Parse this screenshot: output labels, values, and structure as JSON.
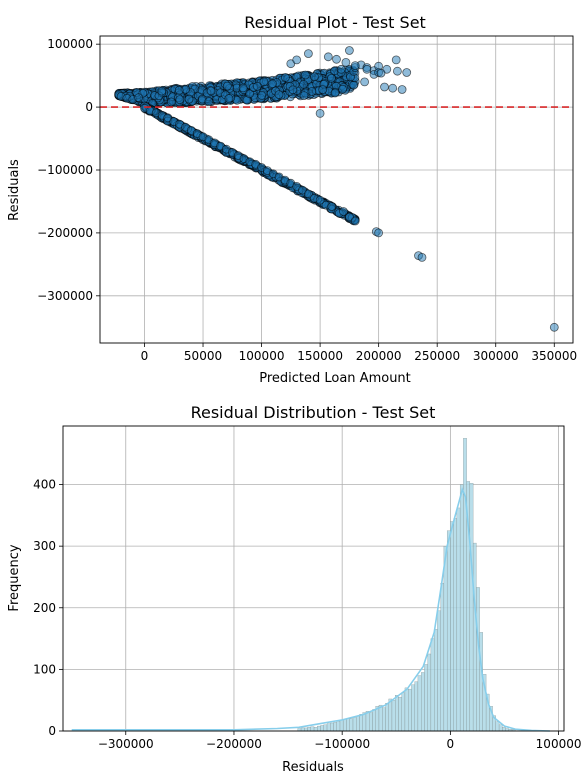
{
  "chart_data": [
    {
      "type": "scatter",
      "title": "Residual Plot - Test Set",
      "xlabel": "Predicted Loan Amount",
      "ylabel": "Residuals",
      "xlim": [
        -38000,
        366000
      ],
      "ylim": [
        -375000,
        113000
      ],
      "xticks": [
        0,
        50000,
        100000,
        150000,
        200000,
        250000,
        300000,
        350000
      ],
      "xtick_labels": [
        "0",
        "50000",
        "100000",
        "150000",
        "200000",
        "250000",
        "300000",
        "350000"
      ],
      "yticks": [
        100000,
        0,
        -100000,
        -200000,
        -300000
      ],
      "ytick_labels": [
        "100000",
        "0",
        "−100000",
        "−200000",
        "−300000"
      ],
      "grid": true,
      "reference_line": {
        "y": 0,
        "color": "#d62728",
        "style": "dashed"
      },
      "point_color": "#1f77b4",
      "point_edge_color": "#000000",
      "point_alpha": 0.5,
      "point_clouds": [
        {
          "region": "upper band",
          "x_range": [
            -22000,
            180000
          ],
          "residual_min_at_x": [
            [
              -22000,
              18000
            ],
            [
              0,
              5000
            ],
            [
              50000,
              8000
            ],
            [
              100000,
              12000
            ],
            [
              150000,
              20000
            ],
            [
              180000,
              25000
            ]
          ],
          "residual_max_at_x": [
            [
              -22000,
              22000
            ],
            [
              0,
              24000
            ],
            [
              50000,
              35000
            ],
            [
              100000,
              42000
            ],
            [
              150000,
              55000
            ],
            [
              180000,
              62000
            ]
          ]
        },
        {
          "region": "diagonal band",
          "relation": "residual ≈ −predicted",
          "x_range": [
            0,
            180000
          ]
        }
      ],
      "points": [
        [
          -22000,
          20000
        ],
        [
          -20000,
          17000
        ],
        [
          -15000,
          14000
        ],
        [
          -10000,
          12000
        ],
        [
          -5000,
          15000
        ],
        [
          0,
          -2000
        ],
        [
          5000,
          -6000
        ],
        [
          10000,
          -9000
        ],
        [
          15000,
          -13000
        ],
        [
          20000,
          -17000
        ],
        [
          25000,
          -23000
        ],
        [
          30000,
          -27000
        ],
        [
          35000,
          -32000
        ],
        [
          40000,
          -37000
        ],
        [
          45000,
          -42000
        ],
        [
          50000,
          -47000
        ],
        [
          55000,
          -52000
        ],
        [
          60000,
          -57000
        ],
        [
          65000,
          -62000
        ],
        [
          70000,
          -67000
        ],
        [
          75000,
          -72000
        ],
        [
          80000,
          -77000
        ],
        [
          85000,
          -82000
        ],
        [
          90000,
          -87000
        ],
        [
          95000,
          -91000
        ],
        [
          100000,
          -96000
        ],
        [
          105000,
          -101000
        ],
        [
          110000,
          -106000
        ],
        [
          115000,
          -111000
        ],
        [
          120000,
          -116000
        ],
        [
          125000,
          -121000
        ],
        [
          130000,
          -126000
        ],
        [
          135000,
          -132000
        ],
        [
          140000,
          -138000
        ],
        [
          145000,
          -145000
        ],
        [
          150000,
          -148000
        ],
        [
          155000,
          -156000
        ],
        [
          160000,
          -158000
        ],
        [
          170000,
          -166000
        ],
        [
          175000,
          -175000
        ],
        [
          180000,
          -181000
        ],
        [
          198000,
          -198000
        ],
        [
          200000,
          -200000
        ],
        [
          234000,
          -236000
        ],
        [
          237000,
          -239000
        ],
        [
          350000,
          -350000
        ],
        [
          125000,
          69000
        ],
        [
          130000,
          75000
        ],
        [
          140000,
          85000
        ],
        [
          157000,
          80000
        ],
        [
          164000,
          76000
        ],
        [
          172000,
          71000
        ],
        [
          168000,
          60000
        ],
        [
          175000,
          90000
        ],
        [
          180000,
          63000
        ],
        [
          185000,
          67000
        ],
        [
          190000,
          63000
        ],
        [
          196000,
          58000
        ],
        [
          200000,
          65000
        ],
        [
          207000,
          60000
        ],
        [
          212000,
          30000
        ],
        [
          220000,
          28000
        ],
        [
          205000,
          32000
        ],
        [
          188000,
          40000
        ],
        [
          196000,
          52000
        ],
        [
          200000,
          55000
        ],
        [
          215000,
          75000
        ],
        [
          216000,
          57000
        ],
        [
          224000,
          55000
        ],
        [
          190000,
          60000
        ],
        [
          150000,
          -10000
        ],
        [
          180000,
          66000
        ],
        [
          202000,
          54000
        ]
      ]
    },
    {
      "type": "bar",
      "subtype": "histogram_with_kde",
      "title": "Residual Distribution - Test Set",
      "xlabel": "Residuals",
      "ylabel": "Frequency",
      "xlim": [
        -358000,
        105000
      ],
      "ylim": [
        0,
        495
      ],
      "xticks": [
        -300000,
        -200000,
        -100000,
        0,
        100000
      ],
      "xtick_labels": [
        "−300000",
        "−200000",
        "−100000",
        "0",
        "100000"
      ],
      "yticks": [
        0,
        100,
        200,
        300,
        400
      ],
      "ytick_labels": [
        "0",
        "100",
        "200",
        "300",
        "400"
      ],
      "grid": true,
      "bar_color": "#add8e6",
      "bar_edge_color": "#7f8c8d",
      "kde_color": "#87ceeb",
      "bin_width": 3000,
      "bin_centers": [
        -139500,
        -136500,
        -133500,
        -130500,
        -127500,
        -124500,
        -121500,
        -118500,
        -115500,
        -112500,
        -109500,
        -106500,
        -103500,
        -100500,
        -97500,
        -94500,
        -91500,
        -88500,
        -85500,
        -82500,
        -79500,
        -76500,
        -73500,
        -70500,
        -67500,
        -64500,
        -61500,
        -58500,
        -55500,
        -52500,
        -49500,
        -46500,
        -43500,
        -40500,
        -37500,
        -34500,
        -31500,
        -28500,
        -25500,
        -22500,
        -19500,
        -16500,
        -13500,
        -10500,
        -7500,
        -4500,
        -1500,
        1500,
        4500,
        7500,
        10500,
        13500,
        16500,
        19500,
        22500,
        25500,
        28500,
        31500,
        34500,
        37500,
        40500,
        43500,
        46500,
        49500,
        52500,
        55500,
        58500
      ],
      "counts": [
        4,
        5,
        5,
        6,
        7,
        6,
        8,
        9,
        10,
        12,
        13,
        14,
        16,
        18,
        19,
        20,
        20,
        22,
        24,
        27,
        30,
        32,
        30,
        35,
        40,
        42,
        38,
        45,
        52,
        50,
        58,
        55,
        62,
        70,
        68,
        75,
        80,
        90,
        95,
        108,
        125,
        150,
        165,
        195,
        240,
        300,
        325,
        340,
        345,
        362,
        400,
        475,
        405,
        402,
        305,
        233,
        160,
        92,
        60,
        40,
        25,
        15,
        10,
        6,
        4,
        3,
        2
      ],
      "kde": [
        [
          -350000,
          2
        ],
        [
          -300000,
          2
        ],
        [
          -250000,
          2
        ],
        [
          -200000,
          2
        ],
        [
          -160000,
          4
        ],
        [
          -140000,
          6
        ],
        [
          -120000,
          12
        ],
        [
          -100000,
          18
        ],
        [
          -80000,
          27
        ],
        [
          -60000,
          42
        ],
        [
          -40000,
          68
        ],
        [
          -25000,
          105
        ],
        [
          -15000,
          160
        ],
        [
          -8000,
          240
        ],
        [
          -3000,
          300
        ],
        [
          3000,
          340
        ],
        [
          8000,
          372
        ],
        [
          11000,
          392
        ],
        [
          14000,
          380
        ],
        [
          18000,
          305
        ],
        [
          22000,
          215
        ],
        [
          26000,
          140
        ],
        [
          30000,
          85
        ],
        [
          35000,
          45
        ],
        [
          40000,
          22
        ],
        [
          50000,
          8
        ],
        [
          60000,
          3
        ],
        [
          75000,
          1
        ],
        [
          92000,
          0
        ]
      ]
    }
  ]
}
